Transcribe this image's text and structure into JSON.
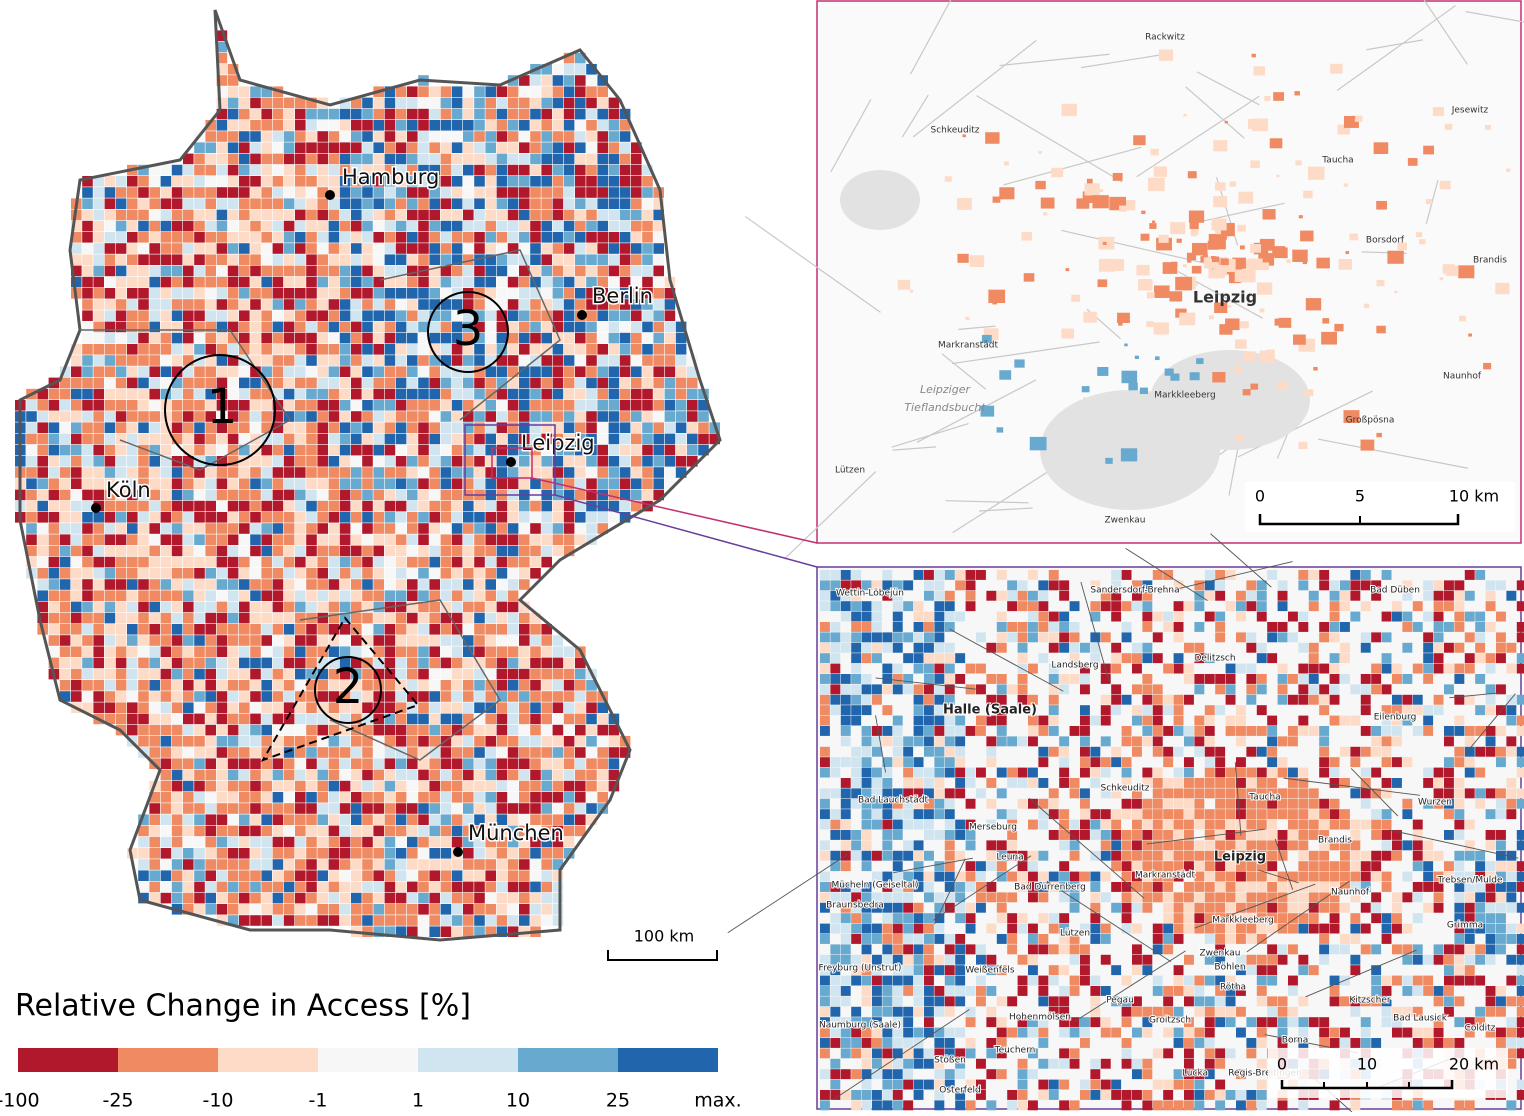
{
  "main_map": {
    "cities": [
      "Hamburg",
      "Berlin",
      "Köln",
      "Leipzig",
      "München"
    ],
    "regions": [
      "1",
      "2",
      "3"
    ],
    "scale_bar": "100 km"
  },
  "legend": {
    "title": "Relative Change in Access [%]",
    "ticks": [
      "-100",
      "-25",
      "-10",
      "-1",
      "1",
      "10",
      "25",
      "max."
    ],
    "colors": [
      "#b2182b",
      "#ef8a62",
      "#fddbc7",
      "#f7f7f7",
      "#d1e5f0",
      "#67a9cf",
      "#2166ac"
    ]
  },
  "inset_leipzig": {
    "places": [
      "Rackwitz",
      "Jesewitz",
      "Schkeuditz",
      "Taucha",
      "Borsdorf",
      "Brandis",
      "Leipzig",
      "Markranstädt",
      "Naunhof",
      "Markkleeberg",
      "Großpösna",
      "Lützen",
      "Zwenkau",
      "Leipziger",
      "Tieflandsbucht"
    ],
    "scale_ticks": [
      "0",
      "5",
      "10 km"
    ]
  },
  "inset_region": {
    "places": [
      "Sandersdorf-Brehna",
      "Bad Düben",
      "Wettin-Löbejün",
      "Landsberg",
      "Delitzsch",
      "Halle (Saale)",
      "Eilenburg",
      "Schkeuditz",
      "Taucha",
      "Bad Lauchstädt",
      "Wurzen",
      "Merseburg",
      "Brandis",
      "Leuna",
      "Leipzig",
      "Markranstädt",
      "Naunhof",
      "Mücheln (Geiseltal)",
      "Bad Dürrenberg",
      "Braunsbedra",
      "Markkleeberg",
      "Trebsen/Mulde",
      "Grimma",
      "Lützen",
      "Zwenkau",
      "Freyburg (Unstrut)",
      "Weißenfels",
      "Böhlen",
      "Rötha",
      "Pegau",
      "Kitzscher",
      "Hohenmölsen",
      "Groitzsch",
      "Bad Lausick",
      "Naumburg (Saale)",
      "Colditz",
      "Borna",
      "Stößen",
      "Teuchern",
      "Lucka",
      "Regis-Breitingen",
      "Osterfeld"
    ],
    "scale_ticks": [
      "0",
      "10",
      "20 km"
    ]
  }
}
